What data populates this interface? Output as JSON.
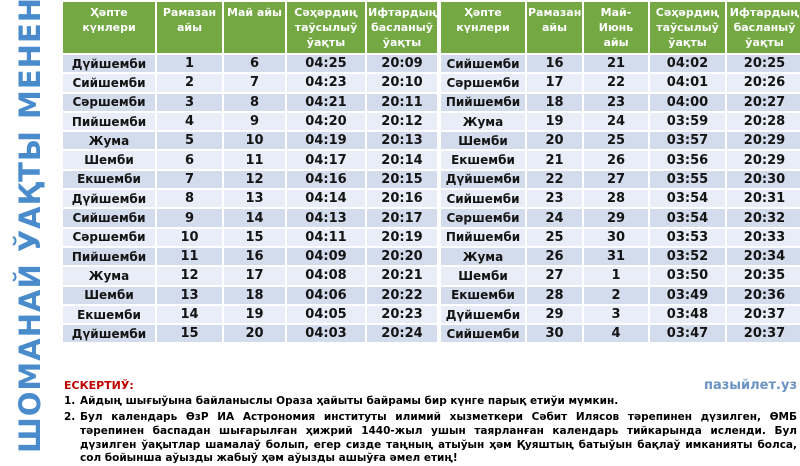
{
  "sidebar": {
    "title": "ШОМАНАЙ ЎАҚТЫ МЕНЕН"
  },
  "tables": [
    {
      "headers": [
        "Ҳәпте күнлери",
        "Рамазан айы",
        "Май айы",
        "Сәҳәрдиң таўсылыў ўақты",
        "Ифтардың басланыў ўақты"
      ],
      "rows": [
        [
          "Дүйшемби",
          "1",
          "6",
          "04:25",
          "20:09"
        ],
        [
          "Сийшемби",
          "2",
          "7",
          "04:23",
          "20:10"
        ],
        [
          "Сәршемби",
          "3",
          "8",
          "04:21",
          "20:11"
        ],
        [
          "Пийшемби",
          "4",
          "9",
          "04:20",
          "20:12"
        ],
        [
          "Жума",
          "5",
          "10",
          "04:19",
          "20:13"
        ],
        [
          "Шемби",
          "6",
          "11",
          "04:17",
          "20:14"
        ],
        [
          "Екшемби",
          "7",
          "12",
          "04:16",
          "20:15"
        ],
        [
          "Дүйшемби",
          "8",
          "13",
          "04:14",
          "20:16"
        ],
        [
          "Сийшемби",
          "9",
          "14",
          "04:13",
          "20:17"
        ],
        [
          "Сәршемби",
          "10",
          "15",
          "04:11",
          "20:19"
        ],
        [
          "Пийшемби",
          "11",
          "16",
          "04:09",
          "20:20"
        ],
        [
          "Жума",
          "12",
          "17",
          "04:08",
          "20:21"
        ],
        [
          "Шемби",
          "13",
          "18",
          "04:06",
          "20:22"
        ],
        [
          "Екшемби",
          "14",
          "19",
          "04:05",
          "20:23"
        ],
        [
          "Дүйшемби",
          "15",
          "20",
          "04:03",
          "20:24"
        ]
      ]
    },
    {
      "headers": [
        "Ҳәпте күнлери",
        "Рамазан айы",
        "Май-Июнь айы",
        "Сәҳәрдиң таўсылыў ўақты",
        "Ифтардың басланыў ўақты"
      ],
      "rows": [
        [
          "Сийшемби",
          "16",
          "21",
          "04:02",
          "20:25"
        ],
        [
          "Сәршемби",
          "17",
          "22",
          "04:01",
          "20:26"
        ],
        [
          "Пийшемби",
          "18",
          "23",
          "04:00",
          "20:27"
        ],
        [
          "Жума",
          "19",
          "24",
          "03:59",
          "20:28"
        ],
        [
          "Шемби",
          "20",
          "25",
          "03:57",
          "20:29"
        ],
        [
          "Екшемби",
          "21",
          "26",
          "03:56",
          "20:29"
        ],
        [
          "Дүйшемби",
          "22",
          "27",
          "03:55",
          "20:30"
        ],
        [
          "Сийшемби",
          "23",
          "28",
          "03:54",
          "20:31"
        ],
        [
          "Сәршемби",
          "24",
          "29",
          "03:54",
          "20:32"
        ],
        [
          "Пийшемби",
          "25",
          "30",
          "03:53",
          "20:33"
        ],
        [
          "Жума",
          "26",
          "31",
          "03:52",
          "20:34"
        ],
        [
          "Шемби",
          "27",
          "1",
          "03:50",
          "20:35"
        ],
        [
          "Екшемби",
          "28",
          "2",
          "03:49",
          "20:36"
        ],
        [
          "Дүйшемби",
          "29",
          "3",
          "03:48",
          "20:37"
        ],
        [
          "Сийшемби",
          "30",
          "4",
          "03:47",
          "20:37"
        ]
      ]
    }
  ],
  "footer": {
    "note_title": "ЕСКЕРТИЎ:",
    "site": "пазыйлет.уз",
    "notes": [
      {
        "num": "1.",
        "text": "Айдың шығыўына байланыслы Ораза ҳайыты байрамы бир күнге парық етиўи мүмкин."
      },
      {
        "num": "2.",
        "text": "Бул календарь ӨзР ИА Астрономия институты илимий хызметкери Сәбит Илясов тәрепинен дүзилген, ӨМБ тәрепинен баспадан шығарылған ҳижрий 1440-жыл ушын таярланған календарь тийкарында исленди. Бул дүзилген ўақытлар шамалаў болып, егер сизде таңның атыўын ҳәм Қуяштың батыўын бақлаў имканияты болса, сол бойынша аўызды жабыў ҳәм аўызды ашыўға әмел етиң!"
      }
    ]
  },
  "colors": {
    "header_green": "#73A843",
    "band_dark": "#D3DCEC",
    "band_light": "#E9EDF7",
    "sidebar_blue": "#4A8CCB",
    "alert_red": "#C00000",
    "link_blue": "#6B94C4",
    "cell_text": "#141414"
  }
}
